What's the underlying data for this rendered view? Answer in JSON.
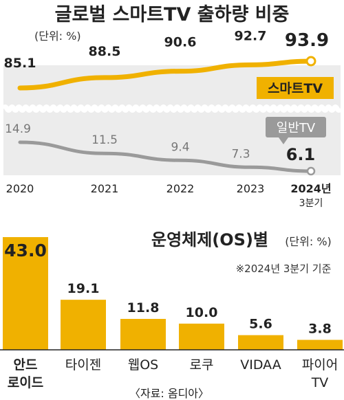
{
  "colors": {
    "accent": "#f0b100",
    "accent_dark": "#e0a000",
    "gray_line": "#9a9a9a",
    "panel_bg": "#ececec",
    "text": "#222222"
  },
  "chart_data": [
    {
      "type": "line",
      "title": "글로벌 스마트TV 출하량 비중",
      "unit_note": "(단위: %)",
      "x": [
        "2020",
        "2021",
        "2022",
        "2023",
        "2024년"
      ],
      "x_sub": "3분기",
      "series": [
        {
          "name": "스마트TV",
          "values": [
            85.1,
            88.5,
            90.6,
            92.7,
            93.9
          ],
          "labels": [
            "85.1",
            "88.5",
            "90.6",
            "92.7",
            "93.9"
          ],
          "color": "#f0b100"
        },
        {
          "name": "일반TV",
          "values": [
            14.9,
            11.5,
            9.4,
            7.3,
            6.1
          ],
          "labels": [
            "14.9",
            "11.5",
            "9.4",
            "7.3",
            "6.1"
          ],
          "color": "#9a9a9a"
        }
      ],
      "axis_break": true,
      "grid": false
    },
    {
      "type": "bar",
      "title": "운영체제(OS)별",
      "unit_note": "(단위: %)",
      "note": "※2024년 3분기 기준",
      "categories": [
        "안드\n로이드",
        "타이젠",
        "웹OS",
        "로쿠",
        "VIDAA",
        "파이어\nTV"
      ],
      "values": [
        43.0,
        19.1,
        11.8,
        10.0,
        5.6,
        3.8
      ],
      "value_labels": [
        "43.0",
        "19.1",
        "11.8",
        "10.0",
        "5.6",
        "3.8"
      ],
      "color": "#f0b100"
    }
  ],
  "source": "〈자료: 옴디아〉"
}
